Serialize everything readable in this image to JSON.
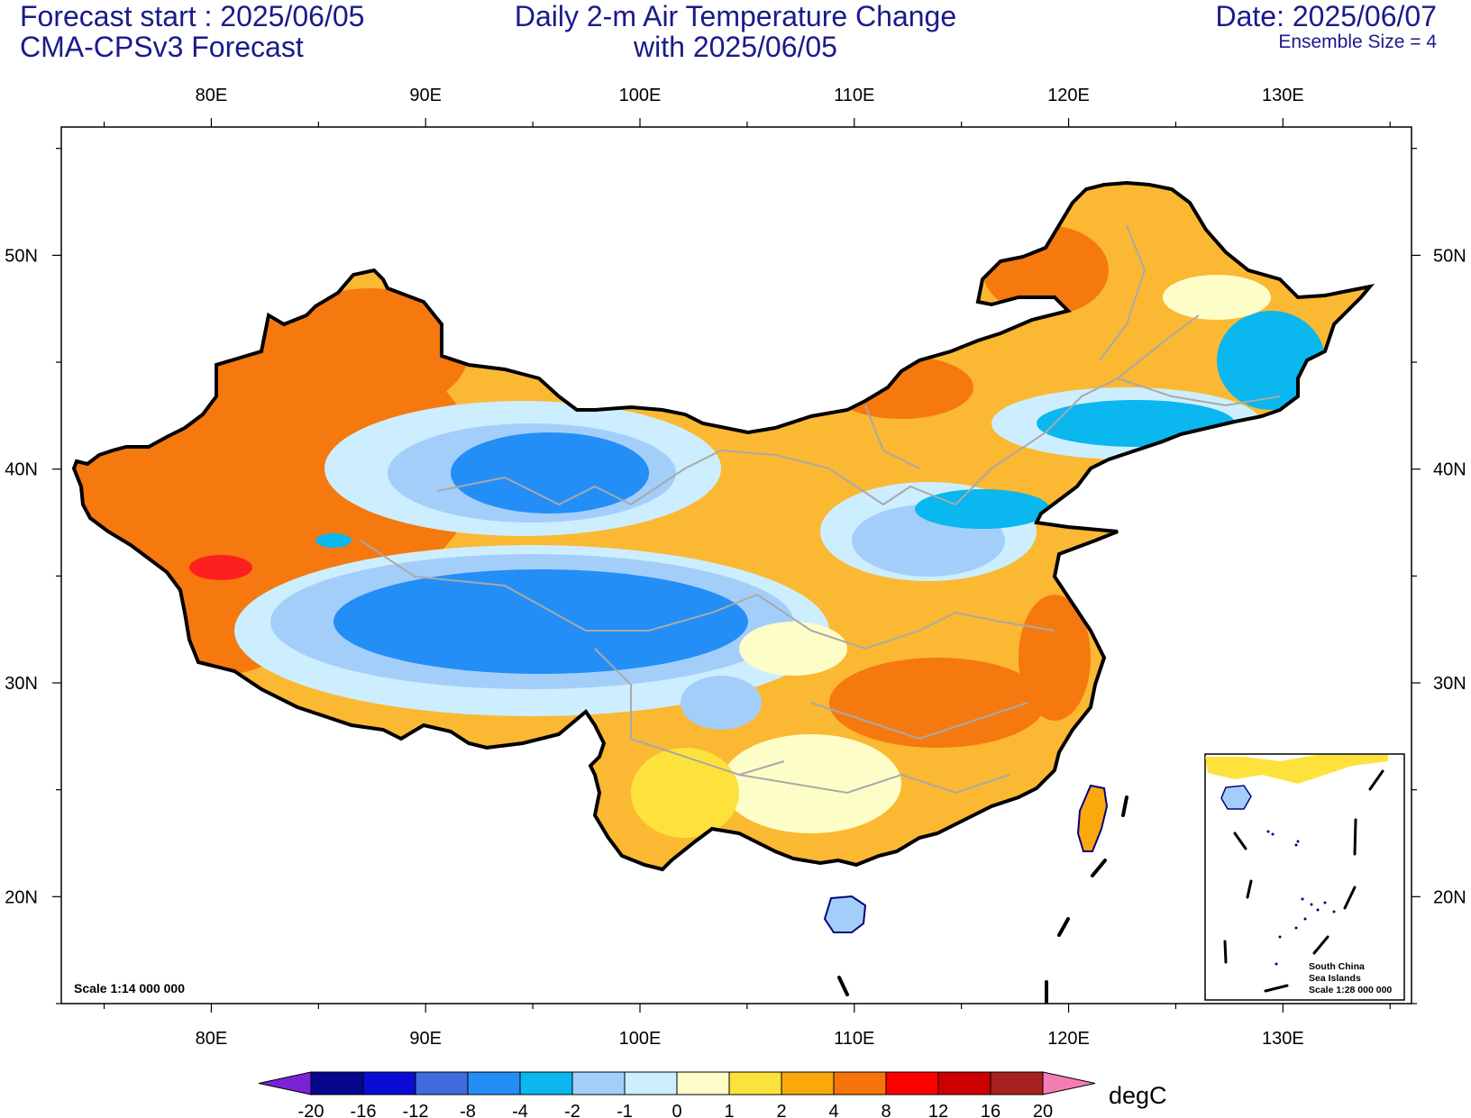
{
  "header": {
    "forecast_start": "Forecast start : 2025/06/05",
    "model": "CMA-CPSv3 Forecast",
    "title_line1": "Daily 2-m Air Temperature Change",
    "title_line2": "with 2025/06/05",
    "date": "Date: 2025/06/07",
    "ensemble": "Ensemble Size = 4"
  },
  "map": {
    "lon_ticks": [
      "80E",
      "90E",
      "100E",
      "110E",
      "120E",
      "130E"
    ],
    "lat_ticks": [
      "50N",
      "40N",
      "30N",
      "20N"
    ],
    "lon_values": [
      80,
      90,
      100,
      110,
      120,
      130
    ],
    "lat_values": [
      50,
      40,
      30,
      20
    ],
    "lon_range": [
      73,
      136
    ],
    "lat_range": [
      15,
      56
    ],
    "scale_note": "Scale 1:14 000 000",
    "inset": {
      "lines": [
        "South China",
        "Sea Islands",
        "Scale 1:28 000 000"
      ]
    }
  },
  "colorbar": {
    "unit": "degC",
    "levels": [
      "-20",
      "-16",
      "-12",
      "-8",
      "-4",
      "-2",
      "-1",
      "0",
      "1",
      "2",
      "4",
      "8",
      "12",
      "16",
      "20"
    ],
    "colors": [
      "#7b22d6",
      "#07078e",
      "#0b0bd6",
      "#3f6bde",
      "#238ef6",
      "#0ab7ef",
      "#a4cefa",
      "#cdeefe",
      "#fdfdc8",
      "#fde23c",
      "#f9a90c",
      "#f7740a",
      "#fe0000",
      "#cc0000",
      "#a72121",
      "#f57db6"
    ]
  }
}
